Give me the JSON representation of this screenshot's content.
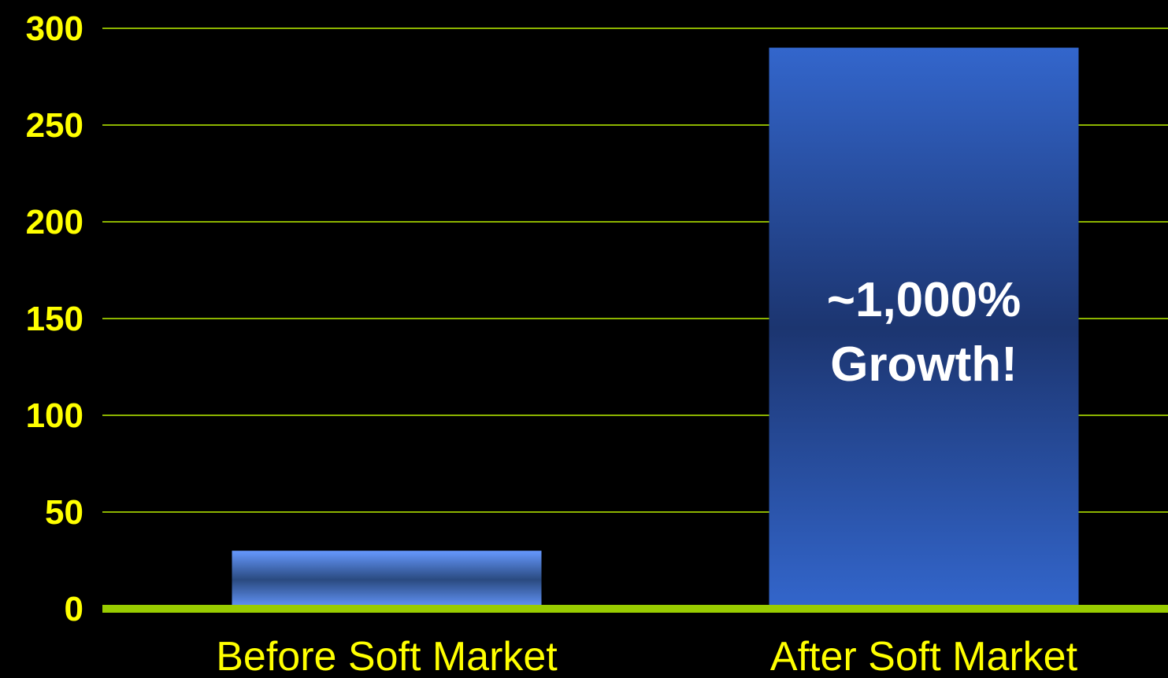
{
  "chart_data": {
    "type": "bar",
    "categories": [
      "Before Soft Market",
      "After Soft Market"
    ],
    "values": [
      30,
      290
    ],
    "ylim": [
      0,
      300
    ],
    "yticks": [
      0,
      50,
      100,
      150,
      200,
      250,
      300
    ],
    "ytick_labels": [
      "0",
      "50",
      "100",
      "150",
      "200",
      "250",
      "300"
    ],
    "grid": true,
    "annotation": {
      "category": "After Soft Market",
      "lines": [
        "~1,000%",
        "Growth!"
      ]
    },
    "colors": {
      "background": "#000000",
      "gridline": "#8cb400",
      "baseline": "#99cc00",
      "tick_label": "#ffff00",
      "category_label": "#ffff00",
      "annotation_text": "#ffffff",
      "bar_before_light": "#6699ff",
      "bar_before_dark": "#2a4a80",
      "bar_after_light": "#3366cc",
      "bar_after_dark": "#1c3570"
    }
  }
}
